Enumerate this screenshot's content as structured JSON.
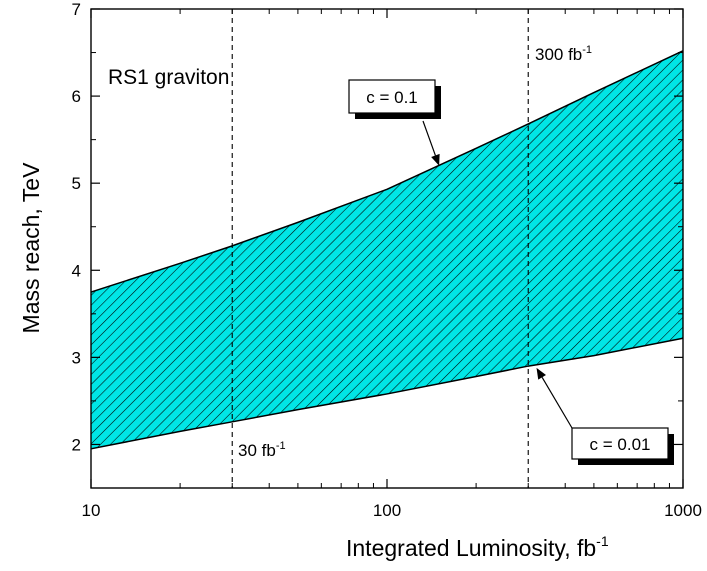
{
  "chart_data": {
    "type": "area",
    "xscale": "log",
    "xlim": [
      10,
      1000
    ],
    "ylim": [
      1.5,
      7
    ],
    "xlabel": "Integrated Luminosity, fb",
    "xlabel_sup": "-1",
    "ylabel": "Mass reach, TeV",
    "x_ticks": [
      10,
      100,
      1000
    ],
    "x_tick_labels": [
      "10",
      "100",
      "1000"
    ],
    "y_ticks": [
      2,
      3,
      4,
      5,
      6,
      7
    ],
    "y_tick_labels": [
      "2",
      "3",
      "4",
      "5",
      "6",
      "7"
    ],
    "fill_color": "#00e6e6",
    "hatch_color": "#000000",
    "series": [
      {
        "name": "c = 0.1",
        "x": [
          10,
          20,
          30,
          50,
          100,
          200,
          300,
          500,
          1000
        ],
        "y": [
          3.75,
          4.08,
          4.28,
          4.55,
          4.93,
          5.4,
          5.68,
          6.04,
          6.52
        ]
      },
      {
        "name": "c = 0.01",
        "x": [
          10,
          20,
          30,
          50,
          100,
          200,
          300,
          500,
          1000
        ],
        "y": [
          1.95,
          2.15,
          2.26,
          2.4,
          2.58,
          2.78,
          2.9,
          3.02,
          3.22
        ]
      }
    ],
    "vlines": [
      {
        "x": 30,
        "label": "30 fb",
        "sup": "-1"
      },
      {
        "x": 300,
        "label": "300 fb",
        "sup": "-1"
      }
    ],
    "annotations": [
      {
        "text": "RS1 graviton"
      },
      {
        "text": "c = 0.1",
        "arrow_to": [
          150,
          5.2
        ]
      },
      {
        "text": "c = 0.01",
        "arrow_to": [
          320,
          2.88
        ]
      }
    ]
  }
}
